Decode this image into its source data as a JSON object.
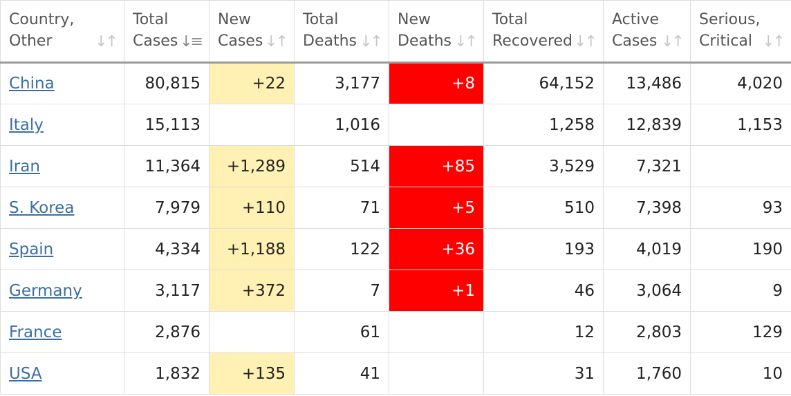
{
  "headers": [
    {
      "line1": "Country,",
      "line2": "Other",
      "sort_icon": "sort-both-icon"
    },
    {
      "line1": "Total",
      "line2": "Cases",
      "sort_icon": "sort-descending-icon"
    },
    {
      "line1": "New",
      "line2": "Cases",
      "sort_icon": "sort-both-icon"
    },
    {
      "line1": "Total",
      "line2": "Deaths",
      "sort_icon": "sort-both-icon"
    },
    {
      "line1": "New",
      "line2": "Deaths",
      "sort_icon": "sort-both-icon"
    },
    {
      "line1": "Total",
      "line2": "Recovered",
      "sort_icon": "sort-both-icon"
    },
    {
      "line1": "Active",
      "line2": "Cases",
      "sort_icon": "sort-both-icon"
    },
    {
      "line1": "Serious,",
      "line2": "Critical",
      "sort_icon": "sort-both-icon"
    }
  ],
  "colors": {
    "new_cases_highlight": "#fff0b3",
    "new_deaths_highlight": "#ff0000",
    "link": "#3a6ea5"
  },
  "rows": [
    {
      "country": "China",
      "total_cases": "80,815",
      "new_cases": "+22",
      "total_deaths": "3,177",
      "new_deaths": "+8",
      "total_recovered": "64,152",
      "active_cases": "13,486",
      "serious_critical": "4,020"
    },
    {
      "country": "Italy",
      "total_cases": "15,113",
      "new_cases": "",
      "total_deaths": "1,016",
      "new_deaths": "",
      "total_recovered": "1,258",
      "active_cases": "12,839",
      "serious_critical": "1,153"
    },
    {
      "country": "Iran",
      "total_cases": "11,364",
      "new_cases": "+1,289",
      "total_deaths": "514",
      "new_deaths": "+85",
      "total_recovered": "3,529",
      "active_cases": "7,321",
      "serious_critical": ""
    },
    {
      "country": "S. Korea",
      "total_cases": "7,979",
      "new_cases": "+110",
      "total_deaths": "71",
      "new_deaths": "+5",
      "total_recovered": "510",
      "active_cases": "7,398",
      "serious_critical": "93"
    },
    {
      "country": "Spain",
      "total_cases": "4,334",
      "new_cases": "+1,188",
      "total_deaths": "122",
      "new_deaths": "+36",
      "total_recovered": "193",
      "active_cases": "4,019",
      "serious_critical": "190"
    },
    {
      "country": "Germany",
      "total_cases": "3,117",
      "new_cases": "+372",
      "total_deaths": "7",
      "new_deaths": "+1",
      "total_recovered": "46",
      "active_cases": "3,064",
      "serious_critical": "9"
    },
    {
      "country": "France",
      "total_cases": "2,876",
      "new_cases": "",
      "total_deaths": "61",
      "new_deaths": "",
      "total_recovered": "12",
      "active_cases": "2,803",
      "serious_critical": "129"
    },
    {
      "country": "USA",
      "total_cases": "1,832",
      "new_cases": "+135",
      "total_deaths": "41",
      "new_deaths": "",
      "total_recovered": "31",
      "active_cases": "1,760",
      "serious_critical": "10"
    }
  ]
}
